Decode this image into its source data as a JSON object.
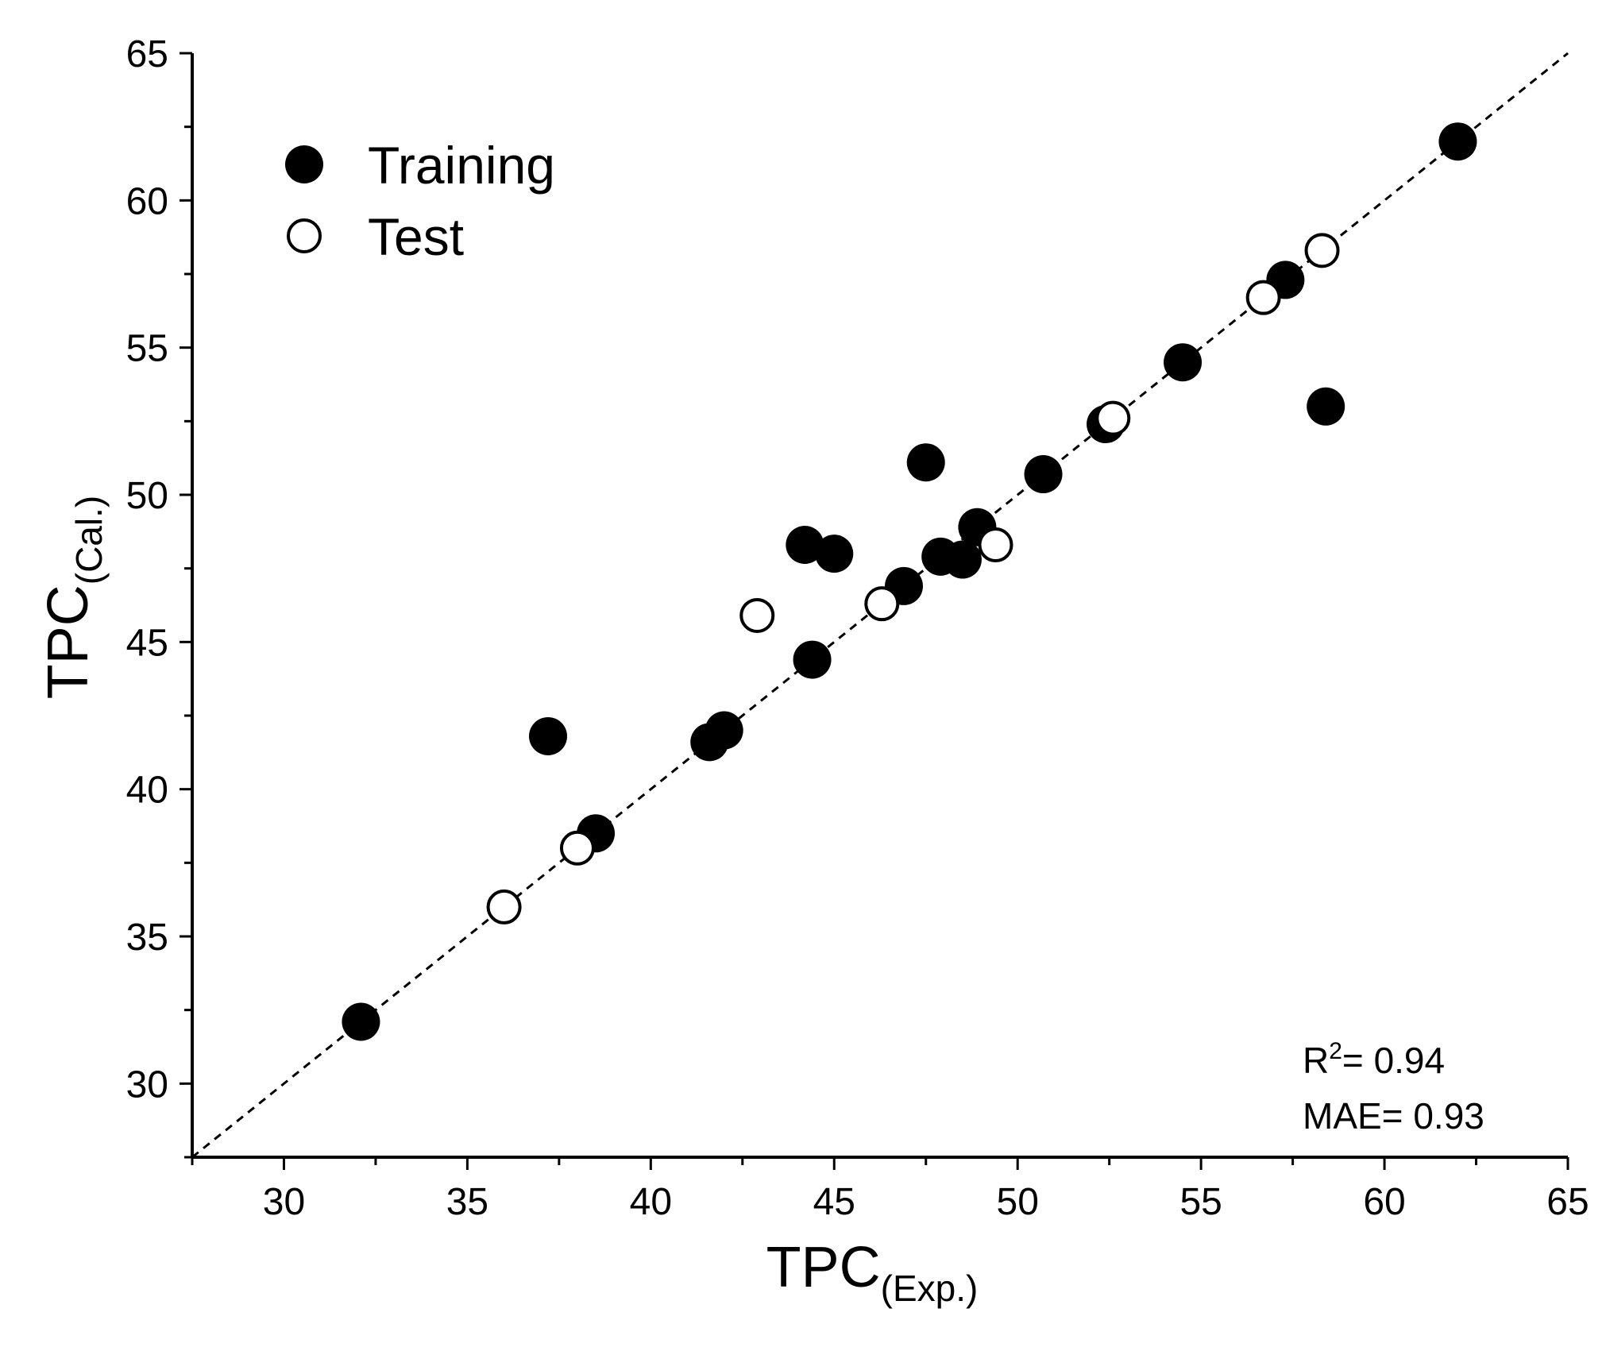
{
  "chart_data": {
    "type": "scatter",
    "title": "",
    "xlabel": {
      "main": "TPC",
      "sub": "(Exp.)"
    },
    "ylabel": {
      "main": "TPC",
      "sub": "(Cal.)"
    },
    "xlim": [
      27.5,
      65
    ],
    "ylim": [
      27.5,
      65
    ],
    "xticks": [
      30,
      35,
      40,
      45,
      50,
      55,
      60,
      65
    ],
    "yticks": [
      30,
      35,
      40,
      45,
      50,
      55,
      60,
      65
    ],
    "minor_tick_step": 2.5,
    "grid": false,
    "reference_line": {
      "style": "dashed",
      "from": [
        27.5,
        27.5
      ],
      "to": [
        65,
        65
      ]
    },
    "legend_position": "top-left",
    "series": [
      {
        "name": "Training",
        "marker": "filled-circle",
        "color": "#000000",
        "points": [
          {
            "x": 32.1,
            "y": 32.1
          },
          {
            "x": 37.2,
            "y": 41.8
          },
          {
            "x": 38.5,
            "y": 38.5
          },
          {
            "x": 41.6,
            "y": 41.6
          },
          {
            "x": 42.0,
            "y": 42.0
          },
          {
            "x": 44.2,
            "y": 48.3
          },
          {
            "x": 44.4,
            "y": 44.4
          },
          {
            "x": 45.0,
            "y": 48.0
          },
          {
            "x": 46.9,
            "y": 46.9
          },
          {
            "x": 47.5,
            "y": 51.1
          },
          {
            "x": 47.9,
            "y": 47.9
          },
          {
            "x": 48.5,
            "y": 47.8
          },
          {
            "x": 48.9,
            "y": 48.9
          },
          {
            "x": 50.7,
            "y": 50.7
          },
          {
            "x": 52.4,
            "y": 52.4
          },
          {
            "x": 54.5,
            "y": 54.5
          },
          {
            "x": 57.3,
            "y": 57.3
          },
          {
            "x": 58.4,
            "y": 53.0
          },
          {
            "x": 62.0,
            "y": 62.0
          }
        ]
      },
      {
        "name": "Test",
        "marker": "open-circle",
        "color": "#000000",
        "points": [
          {
            "x": 36.0,
            "y": 36.0
          },
          {
            "x": 38.0,
            "y": 38.0
          },
          {
            "x": 42.9,
            "y": 45.9
          },
          {
            "x": 46.3,
            "y": 46.3
          },
          {
            "x": 49.4,
            "y": 48.3
          },
          {
            "x": 52.6,
            "y": 52.6
          },
          {
            "x": 56.7,
            "y": 56.7
          },
          {
            "x": 58.3,
            "y": 58.3
          }
        ]
      }
    ],
    "annotations": {
      "r2_label": "R",
      "r2_sup": "2",
      "r2_value": "= 0.94",
      "mae": "MAE= 0.93"
    }
  }
}
